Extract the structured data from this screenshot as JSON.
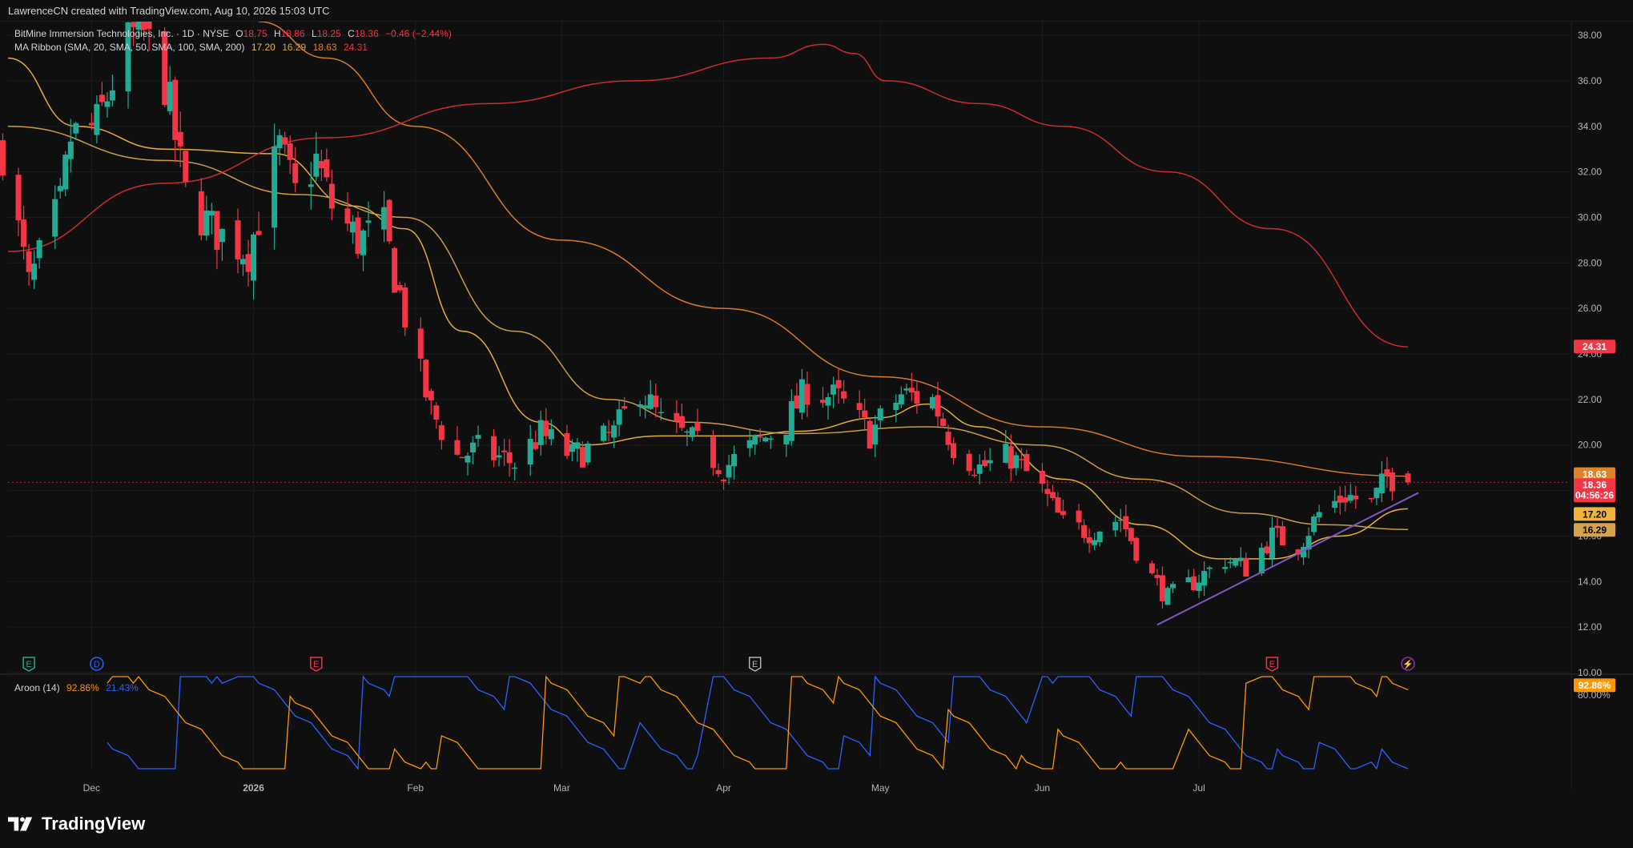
{
  "header": {
    "attribution": "LawrenceCN created with TradingView.com, Aug 10, 2026 15:03 UTC"
  },
  "legend": {
    "symbol": "BitMine Immersion Technologies, Inc. · 1D · NYSE",
    "ohlc": [
      {
        "k": "O",
        "v": "18.75"
      },
      {
        "k": "H",
        "v": "18.86"
      },
      {
        "k": "L",
        "v": "18.25"
      },
      {
        "k": "C",
        "v": "18.36"
      }
    ],
    "change": "−0.46 (−2.44%)",
    "ma_title": "MA Ribbon (SMA, 20, SMA, 50, SMA, 100, SMA, 200)",
    "ma_values": [
      "17.20",
      "16.29",
      "18.63",
      "24.31"
    ],
    "aroon_title": "Aroon (14)",
    "aroon_values": [
      "92.86%",
      "21.43%"
    ]
  },
  "price_tags": {
    "sma200": "24.31",
    "sma100": "18.63",
    "close": "18.36",
    "countdown": "04:56:26",
    "sma20": "17.20",
    "sma50": "16.29",
    "aroon_up": "92.86%"
  },
  "events": [
    {
      "letter": "E",
      "color": "#22ab94",
      "date": "2025-11-19"
    },
    {
      "letter": "D",
      "color": "#2962ff",
      "date": "2025-12-02"
    },
    {
      "letter": "E",
      "color": "#f23645",
      "date": "2026-01-13"
    },
    {
      "letter": "E",
      "color": "#b2b5be",
      "date": "2026-04-07"
    },
    {
      "letter": "E",
      "color": "#f23645",
      "date": "2026-07-15"
    },
    {
      "letter": "⚡",
      "color": "#9c27b0",
      "date": "2026-08-10"
    }
  ],
  "colors": {
    "up": "#22ab94",
    "down": "#f23645",
    "sma20": "#f0b43c",
    "sma50": "#d4a34a",
    "sma100": "#e0822a",
    "sma200": "#d32f2f",
    "aroon_up": "#ff9800",
    "aroon_down": "#2962ff",
    "trendline": "#7e57c2"
  },
  "footer": {
    "brand": "TradingView"
  },
  "chart_data": [
    {
      "type": "candlestick",
      "title": "",
      "x_axis": {
        "labels": [
          "Dec",
          "2026",
          "Feb",
          "Mar",
          "Apr",
          "May",
          "Jun",
          "Jul"
        ],
        "range": [
          "2025-11-15",
          "2026-08-10"
        ]
      },
      "y_axis": {
        "ticks": [
          "10.00",
          "12.00",
          "14.00",
          "16.00",
          "18.00",
          "20.00",
          "22.00",
          "24.00",
          "26.00",
          "28.00",
          "30.00",
          "32.00",
          "34.00",
          "36.00",
          "38.00"
        ],
        "ylim": [
          10,
          38.6
        ]
      },
      "grid": true,
      "trendline": {
        "from": [
          "2026-06-23",
          12.1
        ],
        "to": [
          "2026-08-12",
          17.9
        ]
      },
      "series": [
        {
          "name": "BitMine Immersion Technologies, Inc. · 1D · NYSE",
          "kind": "candles",
          "keypoints": [
            [
              "2025-11-14",
              33.0
            ],
            [
              "2025-11-19",
              27.0
            ],
            [
              "2025-11-25",
              30.5
            ],
            [
              "2025-11-27",
              33.5
            ],
            [
              "2025-12-02",
              34.0
            ],
            [
              "2025-12-05",
              36.0
            ],
            [
              "2025-12-10",
              38.5
            ],
            [
              "2025-12-15",
              36.0
            ],
            [
              "2025-12-19",
              31.0
            ],
            [
              "2025-12-24",
              29.5
            ],
            [
              "2025-12-31",
              28.5
            ],
            [
              "2026-01-06",
              33.0
            ],
            [
              "2026-01-09",
              31.0
            ],
            [
              "2026-01-13",
              32.5
            ],
            [
              "2026-01-16",
              30.5
            ],
            [
              "2026-01-21",
              29.0
            ],
            [
              "2026-01-26",
              29.5
            ],
            [
              "2026-01-28",
              27.5
            ],
            [
              "2026-02-02",
              23.0
            ],
            [
              "2026-02-04",
              21.5
            ],
            [
              "2026-02-09",
              19.5
            ],
            [
              "2026-02-13",
              19.8
            ],
            [
              "2026-02-20",
              19.2
            ],
            [
              "2026-02-25",
              20.5
            ],
            [
              "2026-03-03",
              19.5
            ],
            [
              "2026-03-06",
              19.8
            ],
            [
              "2026-03-11",
              20.5
            ],
            [
              "2026-03-16",
              22.5
            ],
            [
              "2026-03-20",
              21.0
            ],
            [
              "2026-03-27",
              20.0
            ],
            [
              "2026-04-01",
              19.0
            ],
            [
              "2026-04-07",
              20.0
            ],
            [
              "2026-04-13",
              21.0
            ],
            [
              "2026-04-17",
              22.5
            ],
            [
              "2026-04-23",
              22.0
            ],
            [
              "2026-04-29",
              20.5
            ],
            [
              "2026-05-05",
              22.2
            ],
            [
              "2026-05-11",
              22.0
            ],
            [
              "2026-05-15",
              20.0
            ],
            [
              "2026-05-20",
              19.0
            ],
            [
              "2026-05-26",
              19.5
            ],
            [
              "2026-06-01",
              18.0
            ],
            [
              "2026-06-05",
              16.5
            ],
            [
              "2026-06-10",
              16.2
            ],
            [
              "2026-06-16",
              16.8
            ],
            [
              "2026-06-21",
              14.5
            ],
            [
              "2026-06-25",
              13.3
            ],
            [
              "2026-06-30",
              14.0
            ],
            [
              "2026-07-06",
              15.0
            ],
            [
              "2026-07-10",
              14.6
            ],
            [
              "2026-07-15",
              16.0
            ],
            [
              "2026-07-20",
              15.6
            ],
            [
              "2026-07-24",
              17.0
            ],
            [
              "2026-07-29",
              17.8
            ],
            [
              "2026-08-03",
              17.4
            ],
            [
              "2026-08-06",
              18.6
            ],
            [
              "2026-08-10",
              18.36
            ]
          ]
        },
        {
          "name": "SMA 20",
          "kind": "line",
          "points": [
            [
              "2025-11-15",
              37.0
            ],
            [
              "2025-11-28",
              34.0
            ],
            [
              "2025-12-15",
              33.0
            ],
            [
              "2026-01-05",
              32.8
            ],
            [
              "2026-01-20",
              30.5
            ],
            [
              "2026-01-30",
              29.5
            ],
            [
              "2026-02-10",
              25.0
            ],
            [
              "2026-02-25",
              21.0
            ],
            [
              "2026-03-05",
              20.0
            ],
            [
              "2026-03-20",
              20.4
            ],
            [
              "2026-04-05",
              20.4
            ],
            [
              "2026-04-15",
              20.6
            ],
            [
              "2026-05-01",
              21.2
            ],
            [
              "2026-05-10",
              21.8
            ],
            [
              "2026-05-20",
              20.8
            ],
            [
              "2026-06-05",
              18.5
            ],
            [
              "2026-06-20",
              16.5
            ],
            [
              "2026-07-05",
              15.0
            ],
            [
              "2026-07-15",
              15.0
            ],
            [
              "2026-07-28",
              16.0
            ],
            [
              "2026-08-10",
              17.2
            ]
          ]
        },
        {
          "name": "SMA 50",
          "kind": "line",
          "points": [
            [
              "2025-11-15",
              34.0
            ],
            [
              "2025-12-15",
              32.5
            ],
            [
              "2026-01-10",
              31.0
            ],
            [
              "2026-01-30",
              30.0
            ],
            [
              "2026-02-20",
              25.0
            ],
            [
              "2026-03-10",
              22.0
            ],
            [
              "2026-03-25",
              21.0
            ],
            [
              "2026-04-15",
              20.5
            ],
            [
              "2026-05-10",
              20.8
            ],
            [
              "2026-05-31",
              20.0
            ],
            [
              "2026-06-20",
              18.5
            ],
            [
              "2026-07-10",
              17.0
            ],
            [
              "2026-07-25",
              16.5
            ],
            [
              "2026-08-10",
              16.29
            ]
          ]
        },
        {
          "name": "SMA 100",
          "kind": "line",
          "points": [
            [
              "2026-01-02",
              38.6
            ],
            [
              "2026-01-15",
              37.0
            ],
            [
              "2026-02-01",
              34.0
            ],
            [
              "2026-03-01",
              29.0
            ],
            [
              "2026-04-01",
              26.0
            ],
            [
              "2026-05-01",
              23.0
            ],
            [
              "2026-06-01",
              20.8
            ],
            [
              "2026-07-01",
              19.5
            ],
            [
              "2026-08-10",
              18.63
            ]
          ]
        },
        {
          "name": "SMA 200",
          "kind": "line",
          "points": [
            [
              "2025-11-15",
              28.5
            ],
            [
              "2025-12-15",
              31.5
            ],
            [
              "2026-01-15",
              33.5
            ],
            [
              "2026-02-15",
              35.0
            ],
            [
              "2026-03-15",
              36.0
            ],
            [
              "2026-04-10",
              37.0
            ],
            [
              "2026-04-20",
              37.6
            ],
            [
              "2026-04-26",
              37.2
            ],
            [
              "2026-05-02",
              36.0
            ],
            [
              "2026-05-20",
              35.0
            ],
            [
              "2026-06-05",
              34.0
            ],
            [
              "2026-06-25",
              32.0
            ],
            [
              "2026-07-15",
              29.5
            ],
            [
              "2026-08-10",
              24.31
            ]
          ]
        }
      ]
    },
    {
      "type": "line",
      "title": "Aroon (14)",
      "y_axis": {
        "ticks": [
          "80.00%"
        ],
        "ylim": [
          0,
          100
        ]
      },
      "series": [
        {
          "name": "Aroon Up",
          "values_pct_latest": 92.86
        },
        {
          "name": "Aroon Down",
          "values_pct_latest": 21.43
        }
      ]
    }
  ]
}
